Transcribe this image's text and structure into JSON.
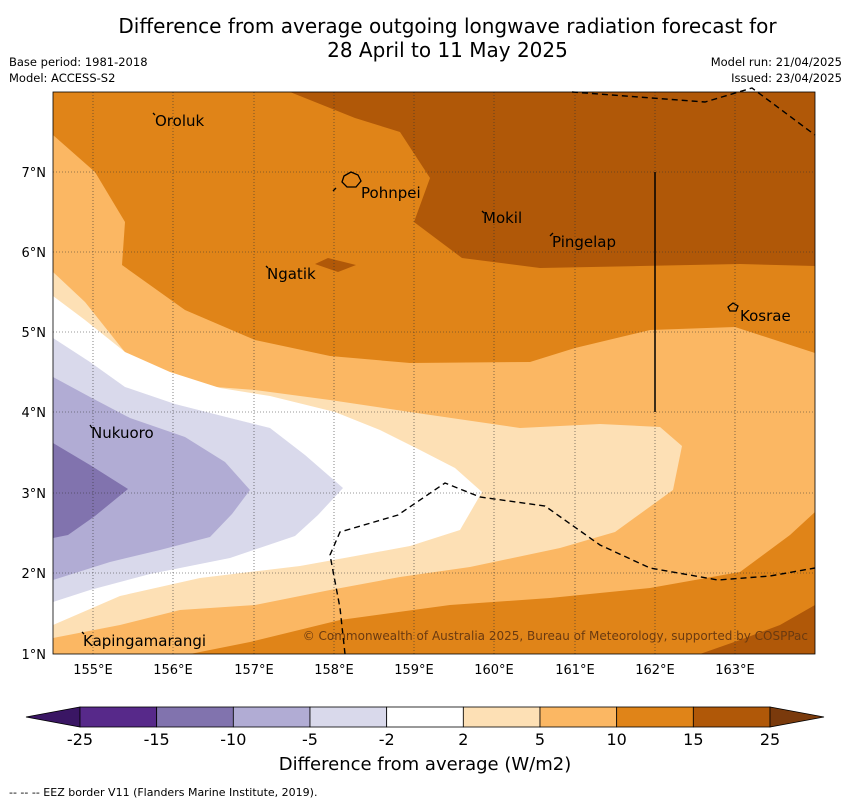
{
  "header": {
    "title_line1": "Difference from average outgoing longwave radiation forecast for",
    "title_line2": "28 April to 11 May 2025",
    "base_period": "Base period: 1981-2018",
    "model": "Model: ACCESS-S2",
    "model_run": "Model run: 21/04/2025",
    "issued": "Issued: 23/04/2025"
  },
  "chart_data": {
    "type": "heatmap",
    "title": "Difference from average outgoing longwave radiation forecast for 28 April to 11 May 2025",
    "x_unit": "°E",
    "y_unit": "°N",
    "xlim": [
      154.5,
      164.0
    ],
    "ylim": [
      1.0,
      8.0
    ],
    "x_ticks": [
      "155°E",
      "156°E",
      "157°E",
      "158°E",
      "159°E",
      "160°E",
      "161°E",
      "162°E",
      "163°E"
    ],
    "y_ticks": [
      "1°N",
      "2°N",
      "3°N",
      "4°N",
      "5°N",
      "6°N",
      "7°N"
    ],
    "colorbar": {
      "label": "Difference from average (W/m2)",
      "tick_labels": [
        "-25",
        "-15",
        "-10",
        "-5",
        "-2",
        "2",
        "5",
        "10",
        "15",
        "25"
      ],
      "colors": [
        "#3a1664",
        "#57298a",
        "#8173ae",
        "#b1acd4",
        "#d9d9eb",
        "#ffffff",
        "#fde0b5",
        "#fbb763",
        "#e08418",
        "#b05808",
        "#7a3a0c"
      ]
    },
    "places": [
      {
        "name": "Oroluk",
        "lon": 155.7,
        "lat": 7.6
      },
      {
        "name": "Pohnpei",
        "lon": 158.3,
        "lat": 6.8
      },
      {
        "name": "Mokil",
        "lon": 159.9,
        "lat": 6.4
      },
      {
        "name": "Pingelap",
        "lon": 160.7,
        "lat": 6.1
      },
      {
        "name": "Ngatik",
        "lon": 157.2,
        "lat": 5.8
      },
      {
        "name": "Kosrae",
        "lon": 163.0,
        "lat": 5.3
      },
      {
        "name": "Nukuoro",
        "lon": 154.9,
        "lat": 3.8
      },
      {
        "name": "Kapingamarangi",
        "lon": 154.9,
        "lat": 1.15
      }
    ],
    "credit": "© Commonwealth of Australia 2025, Bureau of Meteorology, supported by COSPPac"
  },
  "footnote": "-- -- -- EEZ border V11 (Flanders Marine Institute, 2019)."
}
